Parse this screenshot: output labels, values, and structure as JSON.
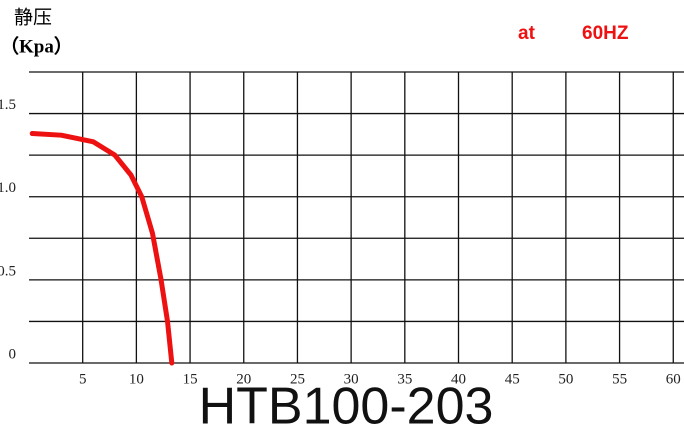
{
  "chart_data": {
    "type": "line",
    "y_label_line1": "静压",
    "y_label_line2": "（Kpa）",
    "annotation_at": "at",
    "annotation_freq": "60HZ",
    "title": "HTB100-203",
    "x": [
      0.3,
      3,
      6,
      8,
      9.5,
      10.5,
      11.5,
      12.3,
      12.9,
      13.3
    ],
    "series": [
      {
        "color": "#ee1111",
        "values": [
          1.38,
          1.37,
          1.33,
          1.25,
          1.13,
          1.0,
          0.78,
          0.5,
          0.25,
          0
        ]
      }
    ],
    "xlim": [
      0,
      61
    ],
    "xticks": [
      5,
      10,
      15,
      20,
      25,
      30,
      35,
      40,
      45,
      50,
      55,
      60
    ],
    "ylim": [
      0,
      1.75
    ],
    "yticks": [
      0,
      {
        "value": 0.5,
        "label": "0.5"
      },
      {
        "value": 1,
        "label": "1.0"
      },
      {
        "value": 1.5,
        "label": "1.5"
      }
    ],
    "y_gridlines": [
      0.25,
      0.75,
      1.25,
      1.75
    ],
    "grid": true
  }
}
